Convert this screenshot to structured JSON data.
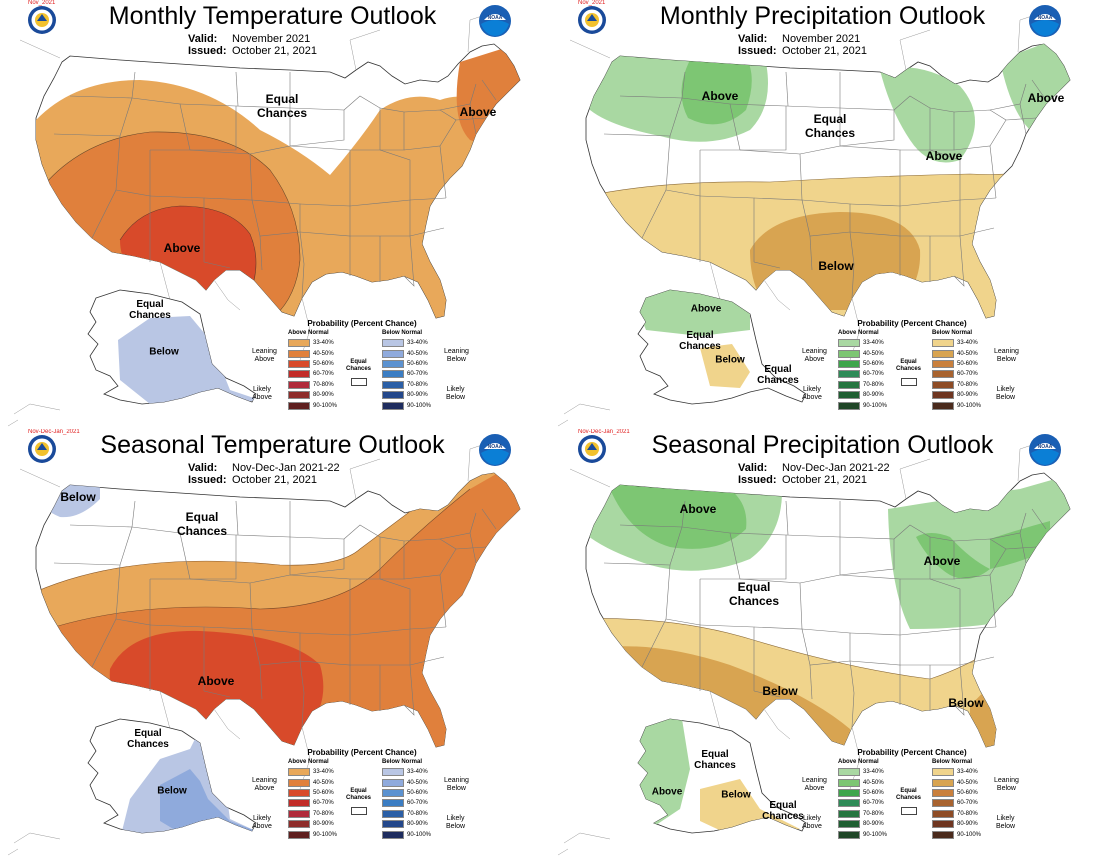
{
  "colors": {
    "above": [
      "#E8A85A",
      "#E0803C",
      "#D84A2A",
      "#C22C28",
      "#B02A3A",
      "#8E2C2A",
      "#5E1F1E"
    ],
    "below": [
      "#B9C6E4",
      "#8FAADC",
      "#5C92D0",
      "#3B7DC3",
      "#2B5FA6",
      "#23478A",
      "#1E2C5E"
    ],
    "wet": [
      "#A9D8A2",
      "#7DC673",
      "#3EA54B",
      "#2E8B57",
      "#25753F",
      "#1E5E31",
      "#1F4526"
    ],
    "dry": [
      "#F0D48C",
      "#D8A451",
      "#C9803D",
      "#A8632F",
      "#8E4C26",
      "#6E3520",
      "#4A2A1C"
    ],
    "state_line": "#7a7a7a",
    "border": "#333333"
  },
  "legend_rows": [
    "33-40%",
    "40-50%",
    "50-60%",
    "60-70%",
    "70-80%",
    "80-90%",
    "90-100%"
  ],
  "panels": {
    "tl": {
      "tag": "Nov_2021",
      "title": "Monthly Temperature Outlook",
      "valid_label": "Valid:",
      "valid_value": "November 2021",
      "issued_label": "Issued:",
      "issued_value": "October 21, 2021",
      "labels": {
        "ec": "Equal\nChances",
        "above": "Above",
        "ak_ec": "Equal\nChances",
        "ak_below": "Below"
      },
      "legend": {
        "title": "Probability (Percent Chance)",
        "left_head": "Above Normal",
        "right_head": "Below Normal",
        "left_lean": "Leaning\nAbove",
        "left_likely": "Likely\nAbove",
        "right_lean": "Leaning\nBelow",
        "right_likely": "Likely\nBelow",
        "ec": "Equal\nChances"
      }
    },
    "tr": {
      "tag": "Nov_2021",
      "title": "Monthly Precipitation Outlook",
      "valid_label": "Valid:",
      "valid_value": "November 2021",
      "issued_label": "Issued:",
      "issued_value": "October 21, 2021",
      "labels": {
        "nw_above": "Above",
        "ec": "Equal\nChances",
        "gl_above": "Above",
        "ne_above": "Above",
        "below": "Below",
        "ak_above": "Above",
        "ak_ec": "Equal\nChances",
        "ak_below": "Below",
        "ak_ec2": "Equal\nChances"
      },
      "legend": {
        "title": "Probability (Percent Chance)",
        "left_head": "Above Normal",
        "right_head": "Below Normal",
        "left_lean": "Leaning\nAbove",
        "left_likely": "Likely\nAbove",
        "right_lean": "Leaning\nBelow",
        "right_likely": "Likely\nBelow",
        "ec": "Equal\nChances"
      }
    },
    "bl": {
      "tag": "Nov-Dec-Jan_2021",
      "title": "Seasonal Temperature Outlook",
      "valid_label": "Valid:",
      "valid_value": "Nov-Dec-Jan 2021-22",
      "issued_label": "Issued:",
      "issued_value": "October 21, 2021",
      "labels": {
        "nw_below": "Below",
        "ec": "Equal\nChances",
        "above": "Above",
        "ak_ec": "Equal\nChances",
        "ak_below": "Below"
      },
      "legend": {
        "title": "Probability (Percent Chance)",
        "left_head": "Above Normal",
        "right_head": "Below Normal",
        "left_lean": "Leaning\nAbove",
        "left_likely": "Likely\nAbove",
        "right_lean": "Leaning\nBelow",
        "right_likely": "Likely\nBelow",
        "ec": "Equal\nChances"
      }
    },
    "br": {
      "tag": "Nov-Dec-Jan_2021",
      "title": "Seasonal Precipitation Outlook",
      "valid_label": "Valid:",
      "valid_value": "Nov-Dec-Jan 2021-22",
      "issued_label": "Issued:",
      "issued_value": "October 21, 2021",
      "labels": {
        "nw_above": "Above",
        "ec": "Equal\nChances",
        "gl_above": "Above",
        "below": "Below",
        "se_below": "Below",
        "ak_above": "Above",
        "ak_ec": "Equal\nChances",
        "ak_below": "Below",
        "ak_ec2": "Equal\nChances"
      },
      "legend": {
        "title": "Probability (Percent Chance)",
        "left_head": "Above Normal",
        "right_head": "Below Normal",
        "left_lean": "Leaning\nAbove",
        "left_likely": "Likely\nAbove",
        "right_lean": "Leaning\nBelow",
        "right_likely": "Likely\nBelow",
        "ec": "Equal\nChances"
      }
    }
  }
}
